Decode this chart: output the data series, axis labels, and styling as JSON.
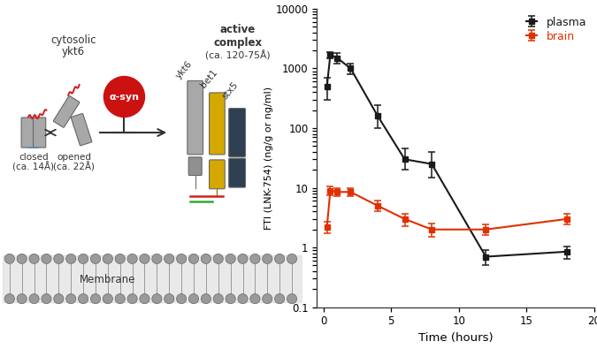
{
  "plasma_x": [
    0.25,
    0.5,
    1.0,
    2.0,
    4.0,
    6.0,
    8.0,
    12.0,
    18.0
  ],
  "plasma_y": [
    500,
    1700,
    1500,
    1000,
    160,
    30,
    25,
    0.7,
    0.85
  ],
  "plasma_yerr_low": [
    200,
    200,
    300,
    200,
    60,
    10,
    10,
    0.2,
    0.2
  ],
  "plasma_yerr_high": [
    200,
    200,
    300,
    200,
    80,
    15,
    15,
    0.2,
    0.2
  ],
  "brain_x": [
    0.25,
    0.5,
    1.0,
    2.0,
    4.0,
    6.0,
    8.0,
    12.0,
    18.0
  ],
  "brain_y": [
    2.2,
    9.0,
    8.5,
    8.5,
    5.0,
    3.0,
    2.0,
    2.0,
    3.0
  ],
  "brain_yerr_low": [
    0.5,
    1.5,
    1.2,
    1.2,
    1.0,
    0.7,
    0.5,
    0.4,
    0.6
  ],
  "brain_yerr_high": [
    0.5,
    1.5,
    1.2,
    1.2,
    1.0,
    0.7,
    0.5,
    0.4,
    0.6
  ],
  "plasma_color": "#1a1a1a",
  "brain_color": "#e03000",
  "xlabel": "Time (hours)",
  "ylabel": "FTI (LNK-754) (ng/g or ng/ml)",
  "background_color": "#ffffff",
  "gray_cyl": "#a8a8a8",
  "yellow_cyl": "#d4a800",
  "darkblue_cyl": "#2e3f52",
  "red_circle": "#cc1111",
  "membrane_head": "#9a9a9a",
  "cyl_edge": "#666666"
}
